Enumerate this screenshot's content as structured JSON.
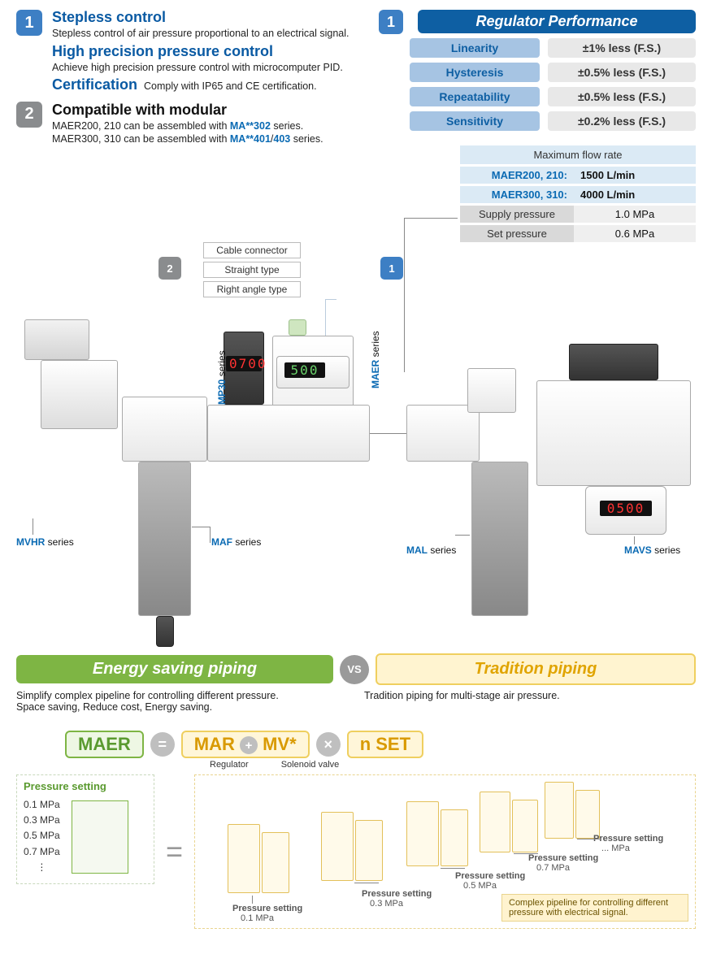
{
  "features": {
    "f1_title": "Stepless control",
    "f1_sub": "Stepless control of air pressure proportional to an electrical signal.",
    "f2_title": "High precision pressure control",
    "f2_sub": "Achieve high precision pressure control with microcomputer PID.",
    "cert_title": "Certification",
    "cert_sub": "Comply with IP65 and CE certification.",
    "compat_title": "Compatible with modular",
    "compat_sub1_a": "MAER200, 210 can be assembled with ",
    "compat_sub1_b": "MA**302",
    "compat_sub1_c": " series.",
    "compat_sub2_a": "MAER300, 310 can be assembled with ",
    "compat_sub2_b": "MA**401",
    "compat_sub2_slash": "/",
    "compat_sub2_c": "403",
    "compat_sub2_d": " series."
  },
  "badges": {
    "one": "1",
    "two": "2"
  },
  "perf": {
    "title": "Regulator Performance",
    "rows": [
      {
        "l": "Linearity",
        "r": "±1% less (F.S.)"
      },
      {
        "l": "Hysteresis",
        "r": "±0.5% less (F.S.)"
      },
      {
        "l": "Repeatability",
        "r": "±0.5% less (F.S.)"
      },
      {
        "l": "Sensitivity",
        "r": "±0.2% less (F.S.)"
      }
    ]
  },
  "flow": {
    "head": "Maximum flow rate",
    "r1_l": "MAER200, 210:",
    "r1_r": "1500 L/min",
    "r2_l": "MAER300, 310:",
    "r2_r": "4000 L/min",
    "r3_l": "Supply pressure",
    "r3_r": "1.0 MPa",
    "r4_l": "Set pressure",
    "r4_r": "0.6 MPa"
  },
  "tags": {
    "cable": "Cable connector",
    "straight": "Straight type",
    "rightangle": "Right angle type"
  },
  "series": {
    "mvhr": "MVHR",
    "maf": "MAF",
    "mp30": "MP30",
    "maer": "MAER",
    "mal": "MAL",
    "mavs": "MAVS",
    "suffix": " series"
  },
  "displays": {
    "mp30": "0700",
    "maer": "500",
    "mavs": "0500"
  },
  "vs": {
    "left_title": "Energy saving piping",
    "right_title": "Tradition piping",
    "vs": "VS",
    "left_sub1": "Simplify complex pipeline for controlling different pressure.",
    "left_sub2": "Space saving, Reduce cost, Energy saving.",
    "right_sub": "Tradition piping for multi-stage air pressure."
  },
  "eq": {
    "maer": "MAER",
    "eq": "=",
    "mar": "MAR",
    "plus": "+",
    "mv": "MV*",
    "times": "×",
    "nset": "n SET",
    "sub_reg": "Regulator",
    "sub_sol": "Solenoid valve"
  },
  "bottom": {
    "ps_title": "Pressure setting",
    "ps_vals": [
      "0.1 MPa",
      "0.3 MPa",
      "0.5 MPa",
      "0.7 MPa"
    ],
    "ps_dots": "⋮",
    "ps_label": "Pressure setting",
    "ps1": "0.1 MPa",
    "ps3": "0.3 MPa",
    "ps5": "0.5 MPa",
    "ps7": "0.7 MPa",
    "psn": "... MPa",
    "note": "Complex pipeline for controlling different pressure with electrical signal."
  },
  "colors": {
    "brand_blue": "#0a5aa3",
    "badge_blue": "#3d7fc4",
    "badge_grey": "#8a8c8e",
    "perf_label_bg": "#a6c4e3",
    "perf_val_bg": "#e8e8e8",
    "green": "#7eb544",
    "yellow": "#efcf5f",
    "yellow_fill": "#fff4d0"
  }
}
